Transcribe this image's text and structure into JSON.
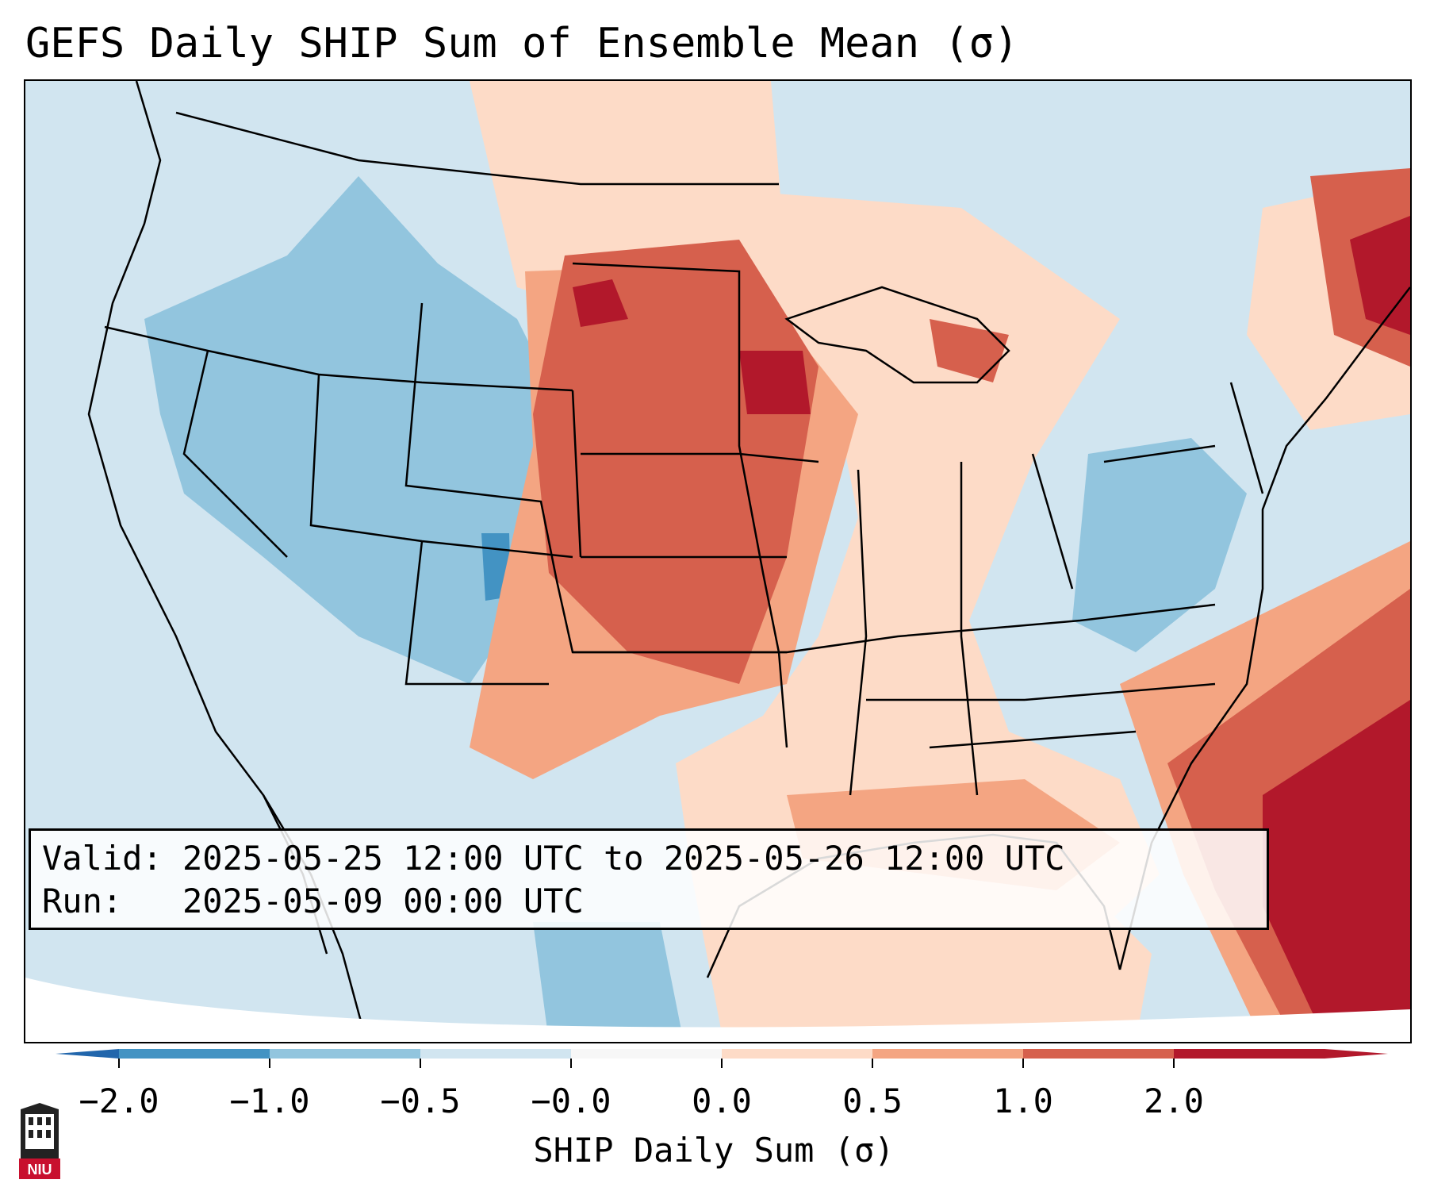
{
  "title": "GEFS Daily SHIP Sum of Ensemble Mean (σ)",
  "info": {
    "valid": "Valid: 2025-05-25 12:00 UTC to 2025-05-26 12:00 UTC",
    "run": "Run:   2025-05-09 00:00 UTC"
  },
  "colorbar": {
    "label": "SHIP Daily Sum (σ)",
    "ticks": [
      "−2.0",
      "−1.0",
      "−0.5",
      "−0.0",
      "0.0",
      "0.5",
      "1.0",
      "2.0"
    ],
    "colors": [
      "#4393c3",
      "#92c5de",
      "#d1e5f0",
      "#f7f7f7",
      "#fddbc7",
      "#f4a582",
      "#d6604d",
      "#b2182b"
    ],
    "under_color": "#2166ac",
    "over_color": "#b2182b"
  },
  "map": {
    "extent": "Contiguous United States, northern Mexico, Gulf of Mexico",
    "highlights": [
      {
        "region": "Northern and Central Plains",
        "level": "1.0 to 2.0"
      },
      {
        "region": "Southern Plains",
        "level": "0.5 to 1.0"
      },
      {
        "region": "Western Atlantic",
        "level": "above 2.0"
      },
      {
        "region": "Intermountain West",
        "level": "-1.0 to -0.5"
      }
    ]
  },
  "logo": {
    "text": "NIU",
    "color": "#c8102e"
  }
}
